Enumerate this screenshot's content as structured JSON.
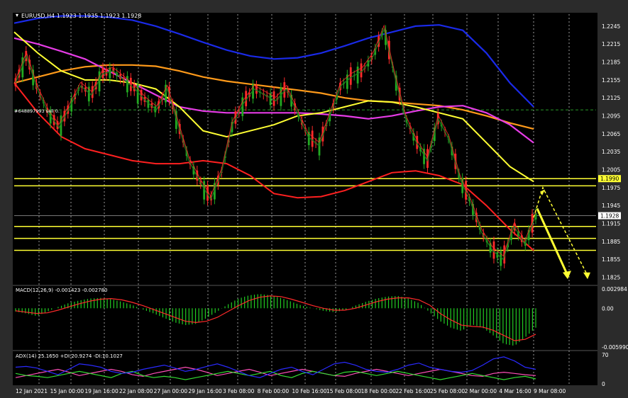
{
  "window": {
    "symbol_header": "EURUSD,H4  1.1923 1.1935 1.1923 1.1928",
    "order_label": "#648897993 sell 0.",
    "bg_color": "#000000",
    "grid_color": "#ffffff"
  },
  "main_panel": {
    "price_ticks": [
      "1.2245",
      "1.2215",
      "1.2185",
      "1.2155",
      "1.2125",
      "1.2095",
      "1.2065",
      "1.2035",
      "1.2005",
      "1.1975",
      "1.1945",
      "1.1915",
      "1.1885",
      "1.1855",
      "1.1825"
    ],
    "current_price_label": "1.1928",
    "level_label": "1.1990"
  },
  "macd_panel": {
    "title": "MACD(12,26,9) -0.001423 -0.002780",
    "ticks": [
      "0.002984",
      "0.00",
      "-0.005990"
    ]
  },
  "adx_panel": {
    "title": "ADX(14) 25.1650 +DI:20.9274 -DI:10.1027",
    "ticks": [
      "70",
      "0"
    ]
  },
  "x_axis_labels": [
    "12 Jan 2021",
    "15 Jan 00:00",
    "19 Jan 16:00",
    "22 Jan 08:00",
    "27 Jan 00:00",
    "29 Jan 16:00",
    "3 Feb 08:00",
    "8 Feb 00:00",
    "10 Feb 16:00",
    "15 Feb 08:00",
    "18 Feb 00:00",
    "22 Feb 16:00",
    "25 Feb 08:00",
    "2 Mar 00:00",
    "4 Mar 16:00",
    "9 Mar 08:00"
  ],
  "chart_data": {
    "type": "line",
    "ylim": [
      1.1815,
      1.2265
    ],
    "price_path": [
      1.215,
      1.2195,
      1.214,
      1.21,
      1.2075,
      1.211,
      1.2145,
      1.213,
      1.2165,
      1.217,
      1.2155,
      1.214,
      1.212,
      1.2105,
      1.214,
      1.208,
      1.202,
      1.1985,
      1.1955,
      1.2,
      1.208,
      1.2115,
      1.214,
      1.213,
      1.212,
      1.214,
      1.21,
      1.206,
      1.2045,
      1.2095,
      1.2145,
      1.216,
      1.217,
      1.2195,
      1.224,
      1.216,
      1.209,
      1.205,
      1.202,
      1.209,
      1.2055,
      1.199,
      1.195,
      1.19,
      1.187,
      1.1855,
      1.191,
      1.188,
      1.1928
    ],
    "ma_blue": [
      1.225,
      1.2258,
      1.2262,
      1.2262,
      1.226,
      1.2255,
      1.2245,
      1.2232,
      1.2218,
      1.2205,
      1.2195,
      1.219,
      1.2192,
      1.22,
      1.2212,
      1.2225,
      1.2235,
      1.2245,
      1.2247,
      1.2238,
      1.22,
      1.215,
      1.211
    ],
    "ma_red": [
      1.215,
      1.21,
      1.206,
      1.204,
      1.203,
      1.202,
      1.2015,
      1.2015,
      1.202,
      1.2015,
      1.1995,
      1.1965,
      1.1958,
      1.196,
      1.197,
      1.1985,
      1.2,
      1.2003,
      1.1995,
      1.198,
      1.1945,
      1.1905,
      1.187
    ],
    "ma_orange": [
      1.215,
      1.216,
      1.217,
      1.2177,
      1.218,
      1.218,
      1.2178,
      1.217,
      1.216,
      1.2153,
      1.2148,
      1.2143,
      1.2138,
      1.2133,
      1.2125,
      1.212,
      1.2118,
      1.2115,
      1.2112,
      1.2105,
      1.2095,
      1.2083,
      1.2073
    ],
    "ma_magenta": [
      1.2225,
      1.2215,
      1.2203,
      1.219,
      1.217,
      1.215,
      1.213,
      1.211,
      1.2103,
      1.21,
      1.21,
      1.21,
      1.21,
      1.2098,
      1.2095,
      1.209,
      1.2095,
      1.2103,
      1.211,
      1.2112,
      1.21,
      1.208,
      1.205
    ],
    "ma_yellow": [
      1.2235,
      1.22,
      1.217,
      1.2155,
      1.2155,
      1.215,
      1.214,
      1.211,
      1.207,
      1.206,
      1.207,
      1.208,
      1.2095,
      1.21,
      1.211,
      1.212,
      1.2118,
      1.211,
      1.21,
      1.209,
      1.205,
      1.201,
      1.1985
    ],
    "horizontal_levels": [
      1.199,
      1.1978,
      1.191,
      1.189,
      1.187
    ],
    "dashed_level": 1.2105,
    "arrow_solid": [
      [
        1.194
      ],
      [
        1.1825
      ]
    ],
    "arrow_dashed": [
      [
        1.1975
      ],
      [
        1.1825
      ]
    ],
    "macd_hist": [
      -0.0005,
      -0.0008,
      -0.0012,
      -0.0005,
      0.0002,
      0.0008,
      0.0012,
      0.0015,
      0.0016,
      0.0014,
      0.001,
      0.0005,
      -0.0002,
      -0.0008,
      -0.0015,
      -0.0022,
      -0.0026,
      -0.0024,
      -0.0015,
      -0.0005,
      0.0006,
      0.0015,
      0.002,
      0.0022,
      0.002,
      0.0016,
      0.001,
      0.0004,
      0.0,
      -0.0004,
      -0.0006,
      -0.0003,
      0.0004,
      0.001,
      0.0015,
      0.0018,
      0.0019,
      0.0015,
      0.0008,
      -0.0006,
      -0.002,
      -0.003,
      -0.0035,
      -0.0025,
      -0.003,
      -0.0042,
      -0.0055,
      -0.0058,
      -0.0045,
      -0.003
    ],
    "macd_signal": [
      -0.0004,
      -0.0006,
      -0.0008,
      -0.0007,
      -0.0003,
      0.0002,
      0.0007,
      0.0011,
      0.0014,
      0.0015,
      0.0013,
      0.0009,
      0.0004,
      -0.0002,
      -0.0008,
      -0.0014,
      -0.002,
      -0.0022,
      -0.002,
      -0.0014,
      -0.0005,
      0.0004,
      0.0012,
      0.0017,
      0.0019,
      0.0018,
      0.0014,
      0.0009,
      0.0004,
      0.0,
      -0.0003,
      -0.0003,
      0.0,
      0.0005,
      0.001,
      0.0014,
      0.0016,
      0.0016,
      0.0013,
      0.0005,
      -0.0008,
      -0.0018,
      -0.0026,
      -0.0028,
      -0.0029,
      -0.0034,
      -0.0042,
      -0.005,
      -0.0048,
      -0.004
    ],
    "adx_blue": [
      40,
      42,
      38,
      30,
      22,
      35,
      48,
      45,
      40,
      30,
      25,
      28,
      35,
      40,
      45,
      38,
      30,
      35,
      42,
      48,
      40,
      30,
      20,
      15,
      25,
      35,
      40,
      30,
      22,
      35,
      48,
      52,
      45,
      35,
      30,
      28,
      35,
      45,
      50,
      40,
      35,
      30,
      28,
      32,
      45,
      60,
      65,
      55,
      40,
      35
    ],
    "adx_pink": [
      15,
      20,
      25,
      30,
      35,
      28,
      20,
      25,
      30,
      35,
      30,
      22,
      18,
      25,
      30,
      35,
      40,
      35,
      28,
      20,
      25,
      30,
      35,
      28,
      20,
      25,
      30,
      35,
      30,
      25,
      20,
      18,
      25,
      30,
      35,
      30,
      25,
      20,
      25,
      30,
      35,
      30,
      25,
      20,
      18,
      25,
      28,
      25,
      22,
      20
    ],
    "adx_green": [
      25,
      20,
      18,
      15,
      20,
      25,
      30,
      25,
      20,
      15,
      25,
      30,
      20,
      15,
      18,
      15,
      10,
      15,
      20,
      25,
      30,
      25,
      20,
      25,
      30,
      20,
      15,
      25,
      30,
      25,
      20,
      28,
      30,
      25,
      20,
      25,
      30,
      25,
      20,
      15,
      10,
      15,
      20,
      25,
      20,
      15,
      10,
      15,
      18,
      12
    ]
  }
}
